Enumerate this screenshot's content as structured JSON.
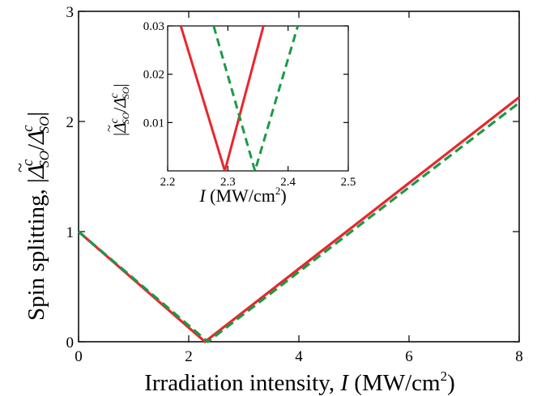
{
  "chart_data": [
    {
      "type": "line",
      "xlabel": "Irradiation intensity, I (MW/cm²)",
      "ylabel": "Spin splitting, |Δ̃ᶜso / Δᶜso|",
      "xlim": [
        0,
        8
      ],
      "ylim": [
        0,
        3
      ],
      "xticks": [
        "0",
        "2",
        "4",
        "6",
        "8"
      ],
      "yticks": [
        "0",
        "1",
        "2",
        "3"
      ],
      "series": [
        {
          "color": "#e8272d",
          "style": "solid",
          "x": [
            0,
            2.295,
            8
          ],
          "y": [
            1.0,
            0.0,
            2.22
          ]
        },
        {
          "color": "#1a9a45",
          "style": "dashed",
          "x": [
            0,
            2.345,
            8
          ],
          "y": [
            1.0,
            0.0,
            2.17
          ]
        }
      ]
    },
    {
      "type": "line",
      "inset": true,
      "xlabel": "I (MW/cm²)",
      "ylabel": "|Δ̃ᶜso / Δᶜso|",
      "xlim": [
        2.2,
        2.5
      ],
      "ylim": [
        0,
        0.03
      ],
      "xticks": [
        "2.2",
        "2.3",
        "2.4",
        "2.5"
      ],
      "yticks": [
        "0.01",
        "0.02",
        "0.03"
      ],
      "series": [
        {
          "color": "#e8272d",
          "style": "solid",
          "x": [
            2.2218,
            2.295,
            2.3592
          ],
          "y": [
            0.03,
            0.0,
            0.03
          ]
        },
        {
          "color": "#1a9a45",
          "style": "dashed",
          "x": [
            2.2764,
            2.345,
            2.4162
          ],
          "y": [
            0.03,
            0.0,
            0.03
          ]
        }
      ]
    }
  ],
  "main_axes": {
    "xlabel_main": "Irradiation intensity, ",
    "xlabel_var": "I",
    "xlabel_unit": " (MW/cm",
    "xlabel_sup": "2",
    "xlabel_close": ")",
    "ylabel_prefix": "Spin splitting, ",
    "ratio_num": "Δ",
    "ratio_num_sup": "c",
    "ratio_num_sub": "SO",
    "ratio_sep": "/",
    "ratio_den": "Δ",
    "ratio_den_sup": "c",
    "ratio_den_sub": "SO",
    "bar": "|",
    "tilde": "~"
  },
  "inset_axes": {
    "xlabel_var": "I",
    "xlabel_unit": " (MW/cm",
    "xlabel_sup": "2",
    "xlabel_close": ")"
  }
}
